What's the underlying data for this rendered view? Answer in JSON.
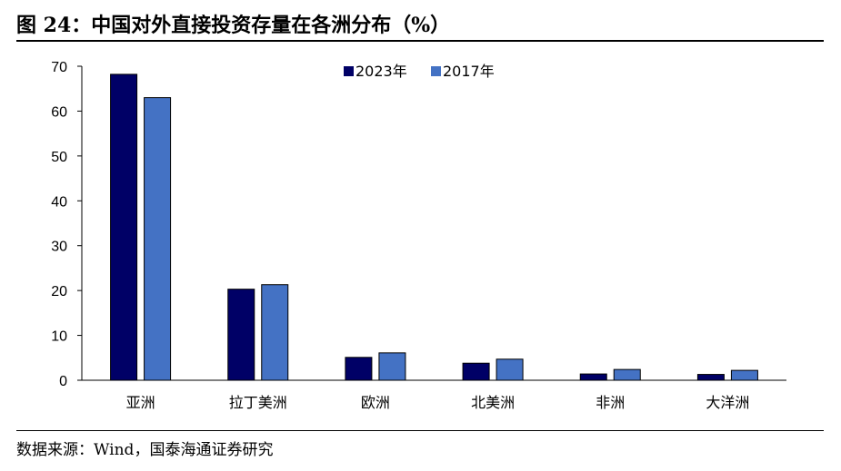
{
  "figure": {
    "title": "图 24：中国对外直接投资存量在各洲分布（%）",
    "source": "数据来源：Wind，国泰海通证券研究"
  },
  "chart_data": {
    "type": "bar",
    "categories": [
      "亚洲",
      "拉丁美洲",
      "欧洲",
      "北美洲",
      "非洲",
      "大洋洲"
    ],
    "series": [
      {
        "name": "2023年",
        "color": "#000066",
        "values": [
          68.2,
          20.3,
          5.1,
          3.8,
          1.4,
          1.3
        ]
      },
      {
        "name": "2017年",
        "color": "#4472C4",
        "values": [
          63.0,
          21.3,
          6.1,
          4.7,
          2.4,
          2.2
        ]
      }
    ],
    "ylim": [
      0,
      70
    ],
    "yticks": [
      "0",
      "10",
      "20",
      "30",
      "40",
      "50",
      "60",
      "70"
    ],
    "legend_position": "top-center",
    "grid": false
  }
}
